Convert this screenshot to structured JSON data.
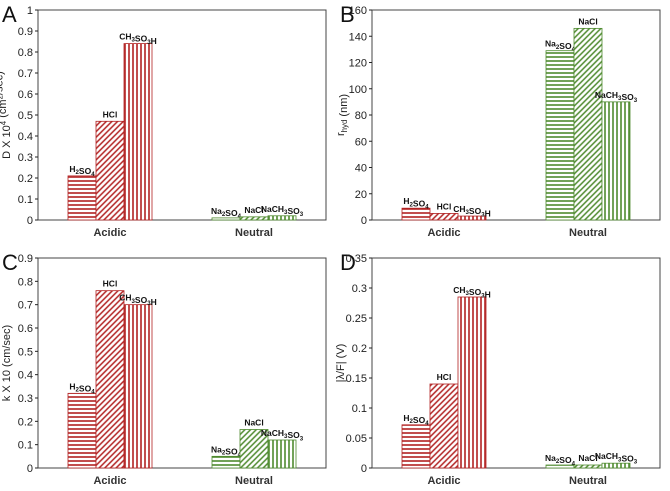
{
  "colors": {
    "acidic": "#b22222",
    "neutral": "#4e8a2e",
    "axis": "#222222",
    "frame": "#444444"
  },
  "chart_data": [
    {
      "panel": "A",
      "type": "bar",
      "ylabel": "D X 10⁴ (cm²/sec)",
      "ylim": [
        0,
        1
      ],
      "yticks": [
        "0",
        "0.1",
        "0.2",
        "0.3",
        "0.4",
        "0.5",
        "0.6",
        "0.7",
        "0.8",
        "0.9",
        "1"
      ],
      "groups": [
        {
          "label": "Acidic",
          "color": "acidic",
          "bars": [
            {
              "label": "H₂SO₄",
              "value": 0.21,
              "pattern": "horizontal"
            },
            {
              "label": "HCl",
              "value": 0.47,
              "pattern": "diagonal"
            },
            {
              "label": "CH₃SO₃H",
              "value": 0.84,
              "pattern": "vertical"
            }
          ]
        },
        {
          "label": "Neutral",
          "color": "neutral",
          "bars": [
            {
              "label": "Na₂SO₄",
              "value": 0.01,
              "pattern": "horizontal"
            },
            {
              "label": "NaCl",
              "value": 0.015,
              "pattern": "diagonal"
            },
            {
              "label": "NaCH₃SO₃",
              "value": 0.02,
              "pattern": "vertical"
            }
          ]
        }
      ]
    },
    {
      "panel": "B",
      "type": "bar",
      "ylabel": "r_hyd (nm)",
      "ylim": [
        0,
        160
      ],
      "yticks": [
        "0",
        "20",
        "40",
        "60",
        "80",
        "100",
        "120",
        "140",
        "160"
      ],
      "groups": [
        {
          "label": "Acidic",
          "color": "acidic",
          "bars": [
            {
              "label": "H₂SO₄",
              "value": 9,
              "pattern": "horizontal"
            },
            {
              "label": "HCl",
              "value": 5,
              "pattern": "diagonal"
            },
            {
              "label": "CH₃SO₃H",
              "value": 3,
              "pattern": "vertical"
            }
          ]
        },
        {
          "label": "Neutral",
          "color": "neutral",
          "bars": [
            {
              "label": "Na₂SO₄",
              "value": 129,
              "pattern": "horizontal"
            },
            {
              "label": "NaCl",
              "value": 146,
              "pattern": "diagonal"
            },
            {
              "label": "NaCH₃SO₃",
              "value": 90,
              "pattern": "vertical"
            }
          ]
        }
      ]
    },
    {
      "panel": "C",
      "type": "bar",
      "ylabel": "k X 10 (cm/sec)",
      "ylim": [
        0,
        0.9
      ],
      "yticks": [
        "0",
        "0.1",
        "0.2",
        "0.3",
        "0.4",
        "0.5",
        "0.6",
        "0.7",
        "0.8",
        "0.9"
      ],
      "groups": [
        {
          "label": "Acidic",
          "color": "acidic",
          "bars": [
            {
              "label": "H₂SO₄",
              "value": 0.32,
              "pattern": "horizontal"
            },
            {
              "label": "HCl",
              "value": 0.76,
              "pattern": "diagonal"
            },
            {
              "label": "CH₃SO₃H",
              "value": 0.7,
              "pattern": "vertical"
            }
          ]
        },
        {
          "label": "Neutral",
          "color": "neutral",
          "bars": [
            {
              "label": "Na₂SO₄",
              "value": 0.05,
              "pattern": "horizontal"
            },
            {
              "label": "NaCl",
              "value": 0.165,
              "pattern": "diagonal"
            },
            {
              "label": "NaCH₃SO₃",
              "value": 0.12,
              "pattern": "vertical"
            }
          ]
        }
      ]
    },
    {
      "panel": "D",
      "type": "bar",
      "ylabel": "|λ/F| (V)",
      "ylim": [
        0,
        0.35
      ],
      "yticks": [
        "0",
        "0.05",
        "0.1",
        "0.15",
        "0.2",
        "0.25",
        "0.3",
        "0.35"
      ],
      "groups": [
        {
          "label": "Acidic",
          "color": "acidic",
          "bars": [
            {
              "label": "H₂SO₄",
              "value": 0.072,
              "pattern": "horizontal"
            },
            {
              "label": "HCl",
              "value": 0.14,
              "pattern": "diagonal"
            },
            {
              "label": "CH₃SO₃H",
              "value": 0.285,
              "pattern": "vertical"
            }
          ]
        },
        {
          "label": "Neutral",
          "color": "neutral",
          "bars": [
            {
              "label": "Na₂SO₄",
              "value": 0.005,
              "pattern": "horizontal"
            },
            {
              "label": "NaCl",
              "value": 0.005,
              "pattern": "diagonal"
            },
            {
              "label": "NaCH₃SO₃",
              "value": 0.008,
              "pattern": "vertical"
            }
          ]
        }
      ]
    }
  ]
}
